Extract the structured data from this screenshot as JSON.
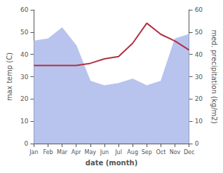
{
  "chart_data": {
    "type": "line",
    "categories": [
      "Jan",
      "Feb",
      "Mar",
      "Apr",
      "May",
      "Jun",
      "Jul",
      "Aug",
      "Sep",
      "Oct",
      "Nov",
      "Dec"
    ],
    "xlabel": "date (month)",
    "ylabel": "max temp (C)",
    "y2label": "med. precipitation (kg/m2)",
    "series": [
      {
        "type": "area",
        "axis": "y2",
        "color": "#b8c4ee",
        "values": [
          46,
          47,
          52,
          44,
          28,
          26,
          27,
          29,
          26,
          28,
          47,
          49
        ]
      },
      {
        "type": "line",
        "color": "#b03040",
        "values": [
          35,
          35,
          35,
          35,
          36,
          38,
          39,
          45,
          54,
          49,
          46,
          42
        ]
      }
    ],
    "ylim": [
      0,
      60
    ],
    "yticks": [
      0,
      10,
      20,
      30,
      40,
      50,
      60
    ],
    "y2lim": [
      0,
      60
    ],
    "y2ticks": [
      0,
      10,
      20,
      30,
      40,
      50,
      60
    ],
    "grid": false
  }
}
